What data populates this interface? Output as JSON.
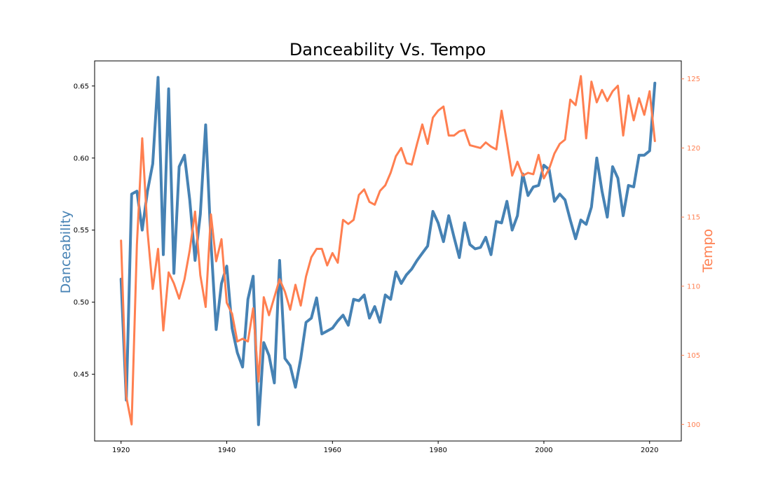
{
  "chart_data": {
    "type": "line",
    "title": "Danceability Vs. Tempo",
    "xlabel": "",
    "xlim": [
      1915,
      2026
    ],
    "xticks": [
      1920,
      1940,
      1960,
      1980,
      2000,
      2020
    ],
    "grid": false,
    "left_axis": {
      "label": "Danceability",
      "color": "#4682b4",
      "ylim": [
        0.4037,
        0.6674
      ],
      "ticks": [
        0.45,
        0.5,
        0.55,
        0.6,
        0.65
      ],
      "tick_labels": [
        "0.45",
        "0.50",
        "0.55",
        "0.60",
        "0.65"
      ]
    },
    "right_axis": {
      "label": "Tempo",
      "color": "#ff7f50",
      "ylim": [
        98.8,
        126.3
      ],
      "ticks": [
        100,
        105,
        110,
        115,
        120,
        125
      ],
      "tick_labels": [
        "100",
        "105",
        "110",
        "115",
        "120",
        "125"
      ]
    },
    "series": [
      {
        "axis": "left",
        "color": "#4682b4",
        "x": [
          1920,
          1921,
          1922,
          1923,
          1924,
          1925,
          1926,
          1927,
          1928,
          1929,
          1930,
          1931,
          1932,
          1933,
          1934,
          1935,
          1936,
          1937,
          1938,
          1939,
          1940,
          1941,
          1942,
          1943,
          1944,
          1945,
          1946,
          1947,
          1948,
          1949,
          1950,
          1951,
          1952,
          1953,
          1954,
          1955,
          1956,
          1957,
          1958,
          1959,
          1960,
          1961,
          1962,
          1963,
          1964,
          1965,
          1966,
          1967,
          1968,
          1969,
          1970,
          1971,
          1972,
          1973,
          1974,
          1975,
          1976,
          1977,
          1978,
          1979,
          1980,
          1981,
          1982,
          1983,
          1984,
          1985,
          1986,
          1987,
          1988,
          1989,
          1990,
          1991,
          1992,
          1993,
          1994,
          1995,
          1996,
          1997,
          1998,
          1999,
          2000,
          2001,
          2002,
          2003,
          2004,
          2005,
          2006,
          2007,
          2008,
          2009,
          2010,
          2011,
          2012,
          2013,
          2014,
          2015,
          2016,
          2017,
          2018,
          2019,
          2020,
          2021
        ],
        "y": [
          0.516,
          0.432,
          0.575,
          0.577,
          0.55,
          0.577,
          0.596,
          0.656,
          0.533,
          0.648,
          0.52,
          0.594,
          0.602,
          0.571,
          0.529,
          0.561,
          0.623,
          0.542,
          0.481,
          0.513,
          0.525,
          0.482,
          0.465,
          0.455,
          0.502,
          0.518,
          0.415,
          0.472,
          0.463,
          0.444,
          0.529,
          0.461,
          0.456,
          0.441,
          0.461,
          0.486,
          0.489,
          0.503,
          0.478,
          0.48,
          0.482,
          0.487,
          0.491,
          0.484,
          0.502,
          0.501,
          0.505,
          0.489,
          0.497,
          0.486,
          0.505,
          0.502,
          0.521,
          0.513,
          0.519,
          0.523,
          0.529,
          0.534,
          0.539,
          0.563,
          0.555,
          0.542,
          0.56,
          0.545,
          0.531,
          0.555,
          0.54,
          0.537,
          0.538,
          0.545,
          0.533,
          0.556,
          0.555,
          0.57,
          0.55,
          0.56,
          0.589,
          0.574,
          0.58,
          0.581,
          0.595,
          0.592,
          0.57,
          0.575,
          0.571,
          0.557,
          0.544,
          0.557,
          0.554,
          0.566,
          0.6,
          0.577,
          0.559,
          0.594,
          0.586,
          0.56,
          0.581,
          0.58,
          0.602,
          0.602,
          0.605,
          0.652
        ]
      },
      {
        "axis": "right",
        "color": "#ff7f50",
        "x": [
          1920,
          1921,
          1922,
          1923,
          1924,
          1925,
          1926,
          1927,
          1928,
          1929,
          1930,
          1931,
          1932,
          1933,
          1934,
          1935,
          1936,
          1937,
          1938,
          1939,
          1940,
          1941,
          1942,
          1943,
          1944,
          1945,
          1946,
          1947,
          1948,
          1949,
          1950,
          1951,
          1952,
          1953,
          1954,
          1955,
          1956,
          1957,
          1958,
          1959,
          1960,
          1961,
          1962,
          1963,
          1964,
          1965,
          1966,
          1967,
          1968,
          1969,
          1970,
          1971,
          1972,
          1973,
          1974,
          1975,
          1976,
          1977,
          1978,
          1979,
          1980,
          1981,
          1982,
          1983,
          1984,
          1985,
          1986,
          1987,
          1988,
          1989,
          1990,
          1991,
          1992,
          1993,
          1994,
          1995,
          1996,
          1997,
          1998,
          1999,
          2000,
          2001,
          2002,
          2003,
          2004,
          2005,
          2006,
          2007,
          2008,
          2009,
          2010,
          2011,
          2012,
          2013,
          2014,
          2015,
          2016,
          2017,
          2018,
          2019,
          2020,
          2021
        ],
        "y": [
          113.3,
          102.0,
          100.0,
          113.0,
          120.7,
          114.0,
          109.8,
          112.7,
          106.8,
          111.0,
          110.2,
          109.1,
          110.5,
          112.6,
          115.4,
          110.8,
          108.5,
          115.2,
          111.8,
          113.4,
          108.8,
          108.0,
          106.0,
          106.2,
          106.0,
          108.4,
          103.1,
          109.2,
          107.9,
          109.2,
          110.5,
          109.6,
          108.3,
          110.1,
          108.6,
          110.7,
          112.1,
          112.7,
          112.7,
          111.5,
          112.4,
          111.7,
          114.8,
          114.5,
          114.8,
          116.6,
          117.0,
          116.1,
          115.9,
          116.9,
          117.3,
          118.2,
          119.4,
          120.0,
          118.9,
          118.8,
          120.3,
          121.7,
          120.3,
          122.2,
          122.7,
          123.0,
          120.9,
          120.9,
          121.2,
          121.3,
          120.2,
          120.1,
          120.0,
          120.4,
          120.1,
          119.9,
          122.7,
          120.4,
          118.0,
          119.0,
          118.0,
          118.2,
          118.1,
          119.5,
          117.8,
          118.5,
          119.6,
          120.3,
          120.6,
          123.5,
          123.1,
          125.2,
          120.7,
          124.8,
          123.3,
          124.2,
          123.4,
          124.1,
          124.5,
          120.9,
          123.8,
          122.0,
          123.6,
          122.4,
          124.1,
          120.5
        ]
      }
    ]
  }
}
